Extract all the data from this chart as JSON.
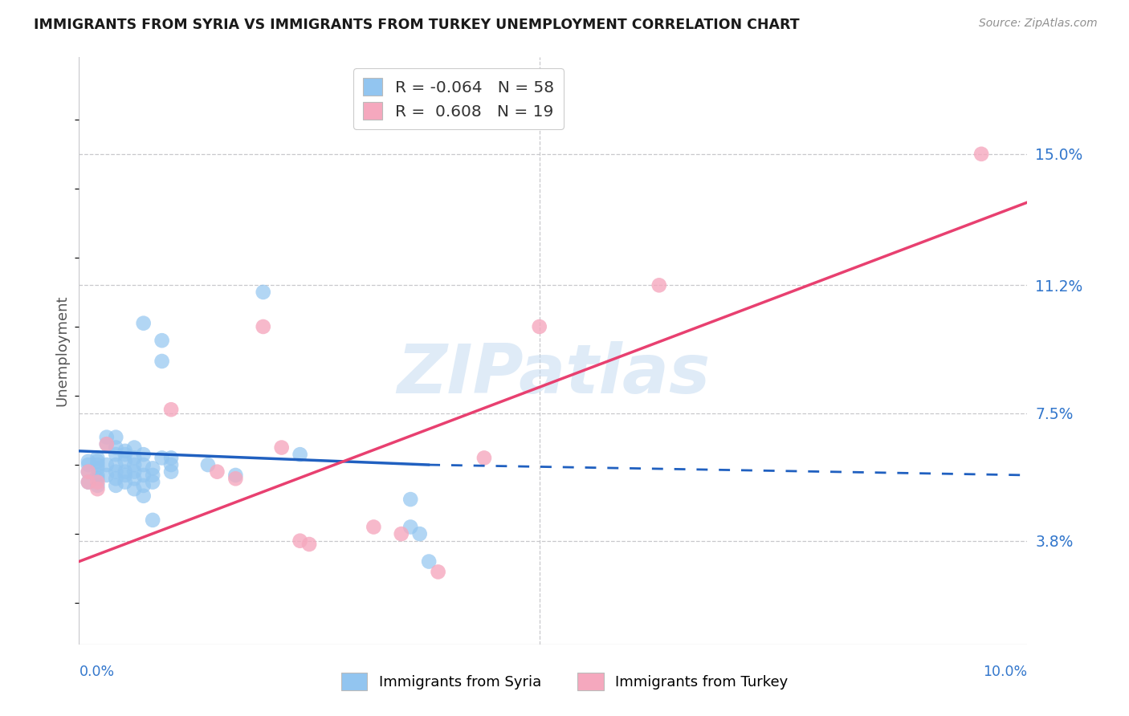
{
  "title": "IMMIGRANTS FROM SYRIA VS IMMIGRANTS FROM TURKEY UNEMPLOYMENT CORRELATION CHART",
  "source": "Source: ZipAtlas.com",
  "ylabel": "Unemployment",
  "y_ticks": [
    0.038,
    0.075,
    0.112,
    0.15
  ],
  "y_tick_labels": [
    "3.8%",
    "7.5%",
    "11.2%",
    "15.0%"
  ],
  "xlim": [
    0.0,
    0.103
  ],
  "ylim": [
    0.008,
    0.178
  ],
  "syria_color": "#92c5f0",
  "turkey_color": "#f5a8be",
  "syria_line_color": "#2060c0",
  "turkey_line_color": "#e84070",
  "syria_r": -0.064,
  "turkey_r": 0.608,
  "syria_n": 58,
  "turkey_n": 19,
  "watermark": "ZIPatlas",
  "syria_scatter_x": [
    0.001,
    0.001,
    0.001,
    0.001,
    0.002,
    0.002,
    0.002,
    0.002,
    0.002,
    0.002,
    0.002,
    0.003,
    0.003,
    0.003,
    0.003,
    0.004,
    0.004,
    0.004,
    0.004,
    0.004,
    0.004,
    0.004,
    0.005,
    0.005,
    0.005,
    0.005,
    0.005,
    0.005,
    0.006,
    0.006,
    0.006,
    0.006,
    0.006,
    0.006,
    0.007,
    0.007,
    0.007,
    0.007,
    0.007,
    0.007,
    0.008,
    0.008,
    0.008,
    0.008,
    0.009,
    0.009,
    0.009,
    0.01,
    0.01,
    0.01,
    0.014,
    0.017,
    0.02,
    0.024,
    0.036,
    0.036,
    0.037,
    0.038
  ],
  "syria_scatter_y": [
    0.061,
    0.06,
    0.058,
    0.055,
    0.062,
    0.061,
    0.06,
    0.059,
    0.057,
    0.056,
    0.054,
    0.068,
    0.066,
    0.06,
    0.057,
    0.068,
    0.065,
    0.063,
    0.06,
    0.058,
    0.056,
    0.054,
    0.064,
    0.063,
    0.061,
    0.058,
    0.057,
    0.055,
    0.065,
    0.062,
    0.06,
    0.058,
    0.056,
    0.053,
    0.101,
    0.063,
    0.06,
    0.057,
    0.054,
    0.051,
    0.059,
    0.057,
    0.055,
    0.044,
    0.096,
    0.09,
    0.062,
    0.062,
    0.06,
    0.058,
    0.06,
    0.057,
    0.11,
    0.063,
    0.05,
    0.042,
    0.04,
    0.032
  ],
  "turkey_scatter_x": [
    0.001,
    0.001,
    0.002,
    0.002,
    0.003,
    0.01,
    0.015,
    0.017,
    0.02,
    0.022,
    0.024,
    0.025,
    0.032,
    0.035,
    0.039,
    0.044,
    0.05,
    0.063,
    0.098
  ],
  "turkey_scatter_y": [
    0.058,
    0.055,
    0.055,
    0.053,
    0.066,
    0.076,
    0.058,
    0.056,
    0.1,
    0.065,
    0.038,
    0.037,
    0.042,
    0.04,
    0.029,
    0.062,
    0.1,
    0.112,
    0.15
  ],
  "syria_trend_x0": 0.0,
  "syria_trend_x_solid_end": 0.038,
  "syria_trend_x1": 0.103,
  "syria_trend_y0": 0.064,
  "syria_trend_y_solid_end": 0.06,
  "syria_trend_y1": 0.057,
  "turkey_trend_x0": 0.0,
  "turkey_trend_x1": 0.103,
  "turkey_trend_y0": 0.032,
  "turkey_trend_y1": 0.136
}
